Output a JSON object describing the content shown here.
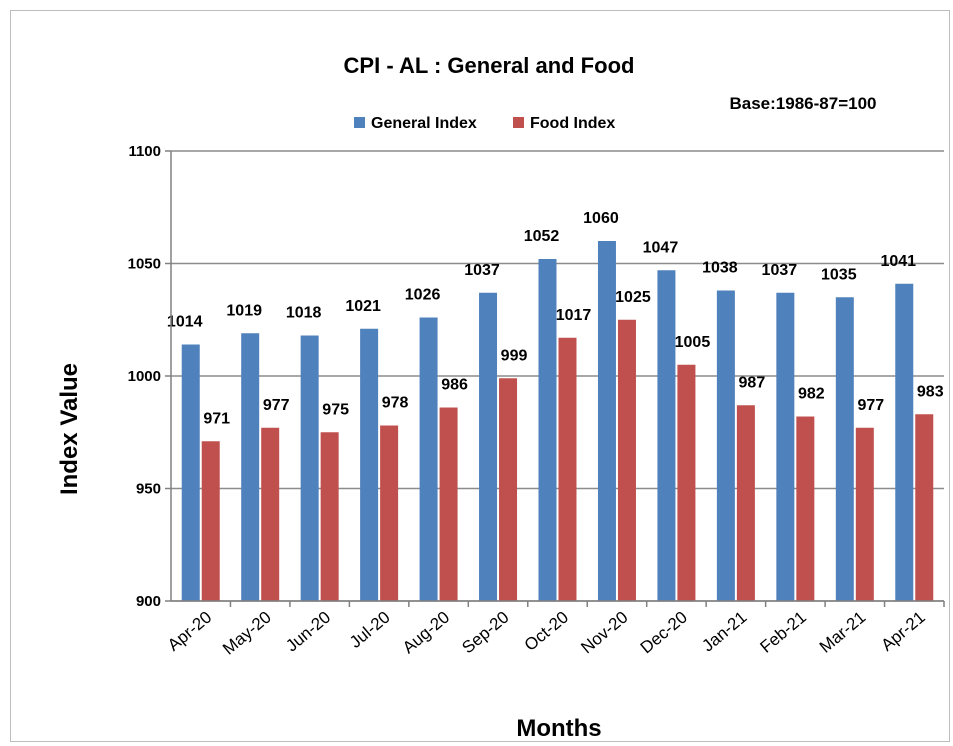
{
  "chart_data": {
    "type": "bar",
    "title": "CPI - AL : General and Food",
    "base_note": "Base:1986-87=100",
    "xlabel": "Months",
    "ylabel": "Index Value",
    "ylim": [
      900,
      1100
    ],
    "yticks": [
      "1100",
      "1050",
      "1000",
      "950",
      "900"
    ],
    "grid": true,
    "legend_position": "top",
    "categories": [
      "Apr-20",
      "May-20",
      "Jun-20",
      "Jul-20",
      "Aug-20",
      "Sep-20",
      "Oct-20",
      "Nov-20",
      "Dec-20",
      "Jan-21",
      "Feb-21",
      "Mar-21",
      "Apr-21"
    ],
    "series": [
      {
        "name": "General Index",
        "color": "#4f81bd",
        "values": [
          1014,
          1019,
          1018,
          1021,
          1026,
          1037,
          1052,
          1060,
          1047,
          1038,
          1037,
          1035,
          1041
        ],
        "labels": [
          "1014",
          "1019",
          "1018",
          "1021",
          "1026",
          "1037",
          "1052",
          "1060",
          "1047",
          "1038",
          "1037",
          "1035",
          "1041"
        ]
      },
      {
        "name": "Food Index",
        "color": "#c0504d",
        "values": [
          971,
          977,
          975,
          978,
          986,
          999,
          1017,
          1025,
          1005,
          987,
          982,
          977,
          983
        ],
        "labels": [
          "971",
          "977",
          "975",
          "978",
          "986",
          "999",
          "1017",
          "1025",
          "1005",
          "987",
          "982",
          "977",
          "983"
        ]
      }
    ]
  }
}
